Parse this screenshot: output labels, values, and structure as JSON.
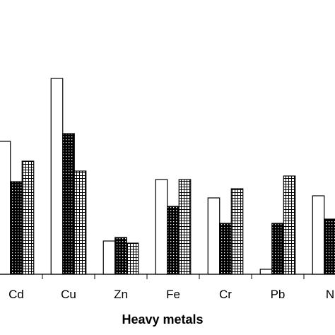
{
  "chart_data": {
    "type": "bar",
    "x_label": "Heavy metals",
    "categories": [
      "Cd",
      "Cu",
      "Zn",
      "Fe",
      "Cr",
      "Pb",
      "N"
    ],
    "series": [
      {
        "color": "#ffffff",
        "pattern": "none",
        "values": [
          188,
          277,
          47,
          134,
          108,
          7,
          111
        ]
      },
      {
        "color": "#000000",
        "pattern": "dots",
        "values": [
          131,
          199,
          52,
          96,
          72,
          72,
          78
        ]
      },
      {
        "color": "#000000",
        "pattern": "grid",
        "values": [
          160,
          146,
          44,
          134,
          121,
          139,
          null
        ]
      }
    ]
  }
}
